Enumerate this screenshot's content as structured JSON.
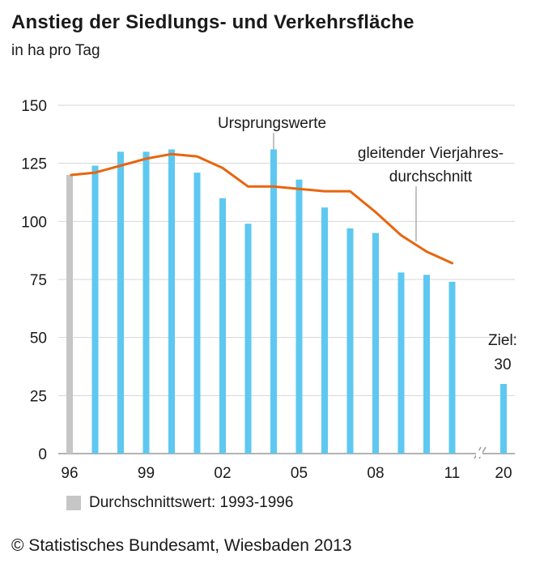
{
  "chart_data": {
    "type": "bar",
    "title": "Anstieg der Siedlungs- und Verkehrsfläche",
    "subtitle": "in ha pro Tag",
    "ylim": [
      0,
      150
    ],
    "yticks": [
      0,
      25,
      50,
      75,
      100,
      125,
      150
    ],
    "xtick_labels": [
      "96",
      "99",
      "02",
      "05",
      "08",
      "11",
      "20"
    ],
    "grid": true,
    "years": [
      1996,
      1997,
      1998,
      1999,
      2000,
      2001,
      2002,
      2003,
      2004,
      2005,
      2006,
      2007,
      2008,
      2009,
      2010,
      2011
    ],
    "series": [
      {
        "name": "Ursprungswerte",
        "values": [
          120,
          124,
          130,
          130,
          131,
          121,
          110,
          99,
          131,
          118,
          106,
          97,
          95,
          78,
          77,
          74
        ],
        "color": "#5ec8f0",
        "first_bar_color": "#c6c6c6"
      },
      {
        "name": "gleitender Vierjahresdurchschnitt",
        "values": [
          120,
          121,
          124,
          127,
          129,
          128,
          123,
          115,
          115,
          114,
          113,
          113,
          104,
          94,
          87,
          82
        ],
        "color": "#e8650e"
      }
    ],
    "target": {
      "label": "20",
      "value": 30,
      "annotation_line1": "Ziel:",
      "annotation_line2": "30"
    },
    "annotations": {
      "bars_label": "Ursprungswerte",
      "line_label_1": "gleitender Vierjahres-",
      "line_label_2": "durchschnitt"
    },
    "legend_text": "Durchschnittswert: 1993-1996"
  },
  "footer": {
    "source": "© Statistisches Bundesamt, Wiesbaden 2013"
  }
}
